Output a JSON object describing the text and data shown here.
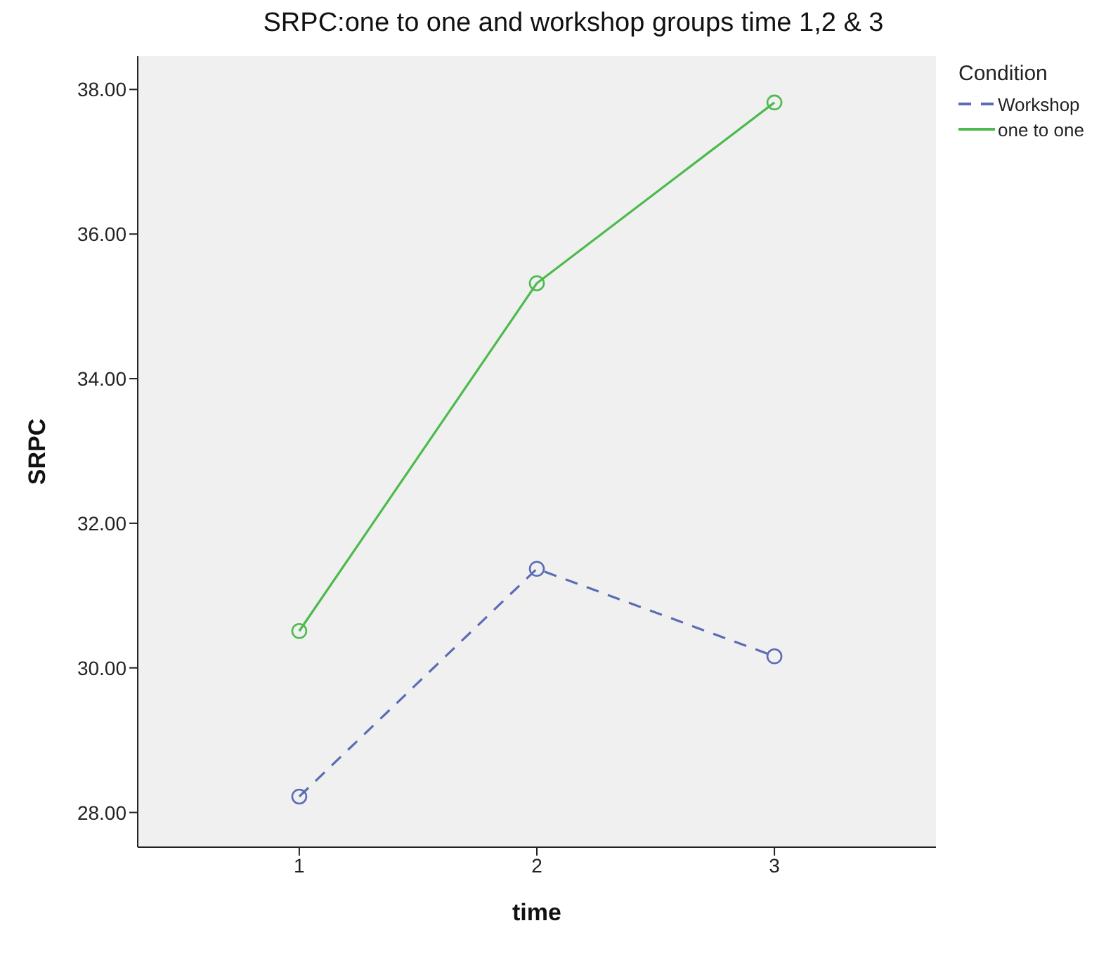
{
  "chart_data": {
    "type": "line",
    "title": "SRPC:one to one and workshop groups time 1,2 & 3",
    "xlabel": "time",
    "ylabel": "SRPC",
    "legend_title": "Condition",
    "x": [
      1,
      2,
      3
    ],
    "xlim": [
      0.32,
      3.68
    ],
    "xticks": [
      1,
      2,
      3
    ],
    "ylim": [
      27.52,
      38.46
    ],
    "yticks": [
      {
        "value": 28,
        "label": "28.00"
      },
      {
        "value": 30,
        "label": "30.00"
      },
      {
        "value": 32,
        "label": "32.00"
      },
      {
        "value": 34,
        "label": "34.00"
      },
      {
        "value": 36,
        "label": "36.00"
      },
      {
        "value": 38,
        "label": "38.00"
      }
    ],
    "grid": false,
    "legend": "top right",
    "marker": "circle",
    "series": [
      {
        "name": "Workshop",
        "color": "#5b6cb4",
        "line_style": "dashed",
        "values": [
          28.22,
          31.37,
          30.16
        ]
      },
      {
        "name": "one to one",
        "color": "#4cbb4c",
        "line_style": "solid",
        "values": [
          30.51,
          35.32,
          37.82
        ]
      }
    ]
  }
}
